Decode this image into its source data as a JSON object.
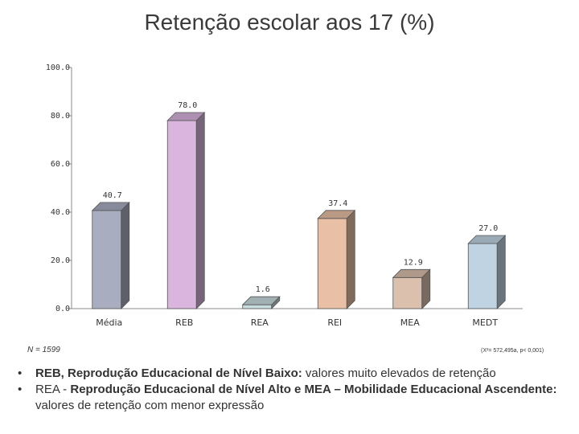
{
  "title": "Retenção escolar aos 17 (%)",
  "chart_data": {
    "type": "bar",
    "categories": [
      "Média",
      "REB",
      "REA",
      "REI",
      "MEA",
      "MEDT"
    ],
    "values": [
      40.7,
      78.0,
      1.6,
      37.4,
      12.9,
      27.0
    ],
    "value_labels": [
      "40.7",
      "78.0",
      "1.6",
      "37.4",
      "12.9",
      "27.0"
    ],
    "y_ticks": [
      "0.0",
      "20.0",
      "40.0",
      "60.0",
      "80.0",
      "100.0"
    ],
    "ylim": [
      0,
      100
    ],
    "grid": false,
    "colors": [
      "#a9adc0",
      "#dab5de",
      "#c9dde0",
      "#e9c0a6",
      "#dbc0ad",
      "#bfd3e3"
    ],
    "title": "Retenção escolar aos 17 (%)"
  },
  "n_label": "N = 1599",
  "stat_label": "(X²= 572,495a, p< 0,001)",
  "notes": [
    {
      "bold": "REB, Reprodução Educacional de Nível Baixo:",
      "normal": " valores muito elevados de retenção"
    },
    {
      "normal_pre": "REA - ",
      "bold": "Reprodução Educacional de Nível Alto  e MEA – Mobilidade Educacional Ascendente:",
      "normal": " valores de retenção com menor expressão"
    }
  ]
}
